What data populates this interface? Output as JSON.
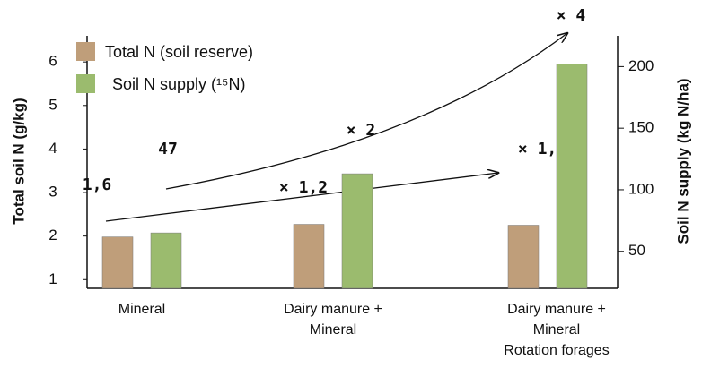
{
  "chart_data": {
    "type": "bar",
    "categories": [
      [
        "Mineral"
      ],
      [
        "Dairy manure +",
        "Mineral"
      ],
      [
        "Dairy manure +",
        "Mineral",
        "Rotation forages"
      ]
    ],
    "series": [
      {
        "name": "Total N (soil reserve)",
        "color": "#bf9e7a",
        "values": [
          1.98,
          2.27,
          2.25
        ]
      },
      {
        "name": "Soil N supply (¹⁵N)",
        "color": "#9bbb6e",
        "axis": "y2",
        "values": [
          65,
          113,
          202
        ]
      }
    ],
    "ylabel": "Total soil N (g/kg)",
    "y2label": "Soil N supply (kg N/ha)",
    "ylim": [
      0.8,
      6.6
    ],
    "yticks": [
      1,
      2,
      3,
      4,
      5,
      6
    ],
    "y2lim": [
      20,
      225
    ],
    "y2ticks": [
      50,
      100,
      150,
      200
    ],
    "legend": "upper left",
    "annotations": [
      "1,6",
      "47",
      "× 1,2",
      "× 2",
      "× 1,5",
      "× 4"
    ]
  }
}
